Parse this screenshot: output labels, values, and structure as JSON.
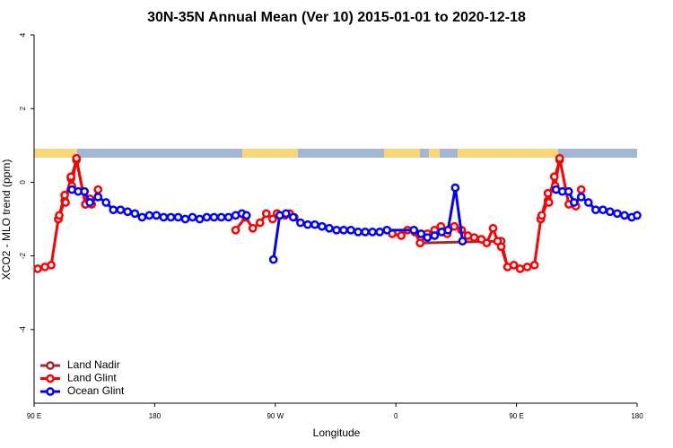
{
  "chart_data": {
    "type": "line",
    "title": "30N-35N Annual Mean (Ver 10)   2015-01-01 to 2020-12-18",
    "x_label": "Longitude",
    "y_label": "XCO2 - MLO trend (ppm)",
    "xlim": [
      90,
      540
    ],
    "ylim": [
      -6,
      4
    ],
    "xticks": [
      {
        "value": 90,
        "label": "90 E"
      },
      180,
      {
        "value": 270,
        "label": "90 W"
      },
      {
        "value": 360,
        "label": "0"
      },
      {
        "value": 450,
        "label": "90 E"
      },
      {
        "value": 540,
        "label": "180"
      }
    ],
    "yticks": [
      4,
      2,
      0,
      -2,
      -4
    ],
    "legend": "bottom-left",
    "series": [
      {
        "name": "Land Nadir",
        "color": "#a52a2a",
        "x": [
          108.1,
          112.8,
          117.5,
          121.6,
          128.3,
          250,
          378.1,
          438.6,
          443.3,
          460,
          468.1,
          473.5,
          482.2
        ],
        "values": [
          -1.0,
          -0.5,
          0.1,
          0.6,
          -0.6,
          null,
          -1.65,
          -1.6,
          -2.3,
          null,
          -1.0,
          -0.5,
          0.6
        ]
      },
      {
        "name": "Land Glint",
        "color": "#ff0000",
        "x": [
          92.7,
          98.1,
          102.8,
          108.1,
          108.8,
          112.8,
          113.5,
          117.5,
          118.2,
          121.6,
          128.3,
          131.6,
          133,
          137.7,
          190,
          240.4,
          247.8,
          253.2,
          258.6,
          263.3,
          268,
          271.3,
          277.4,
          280.7,
          284.1,
          320,
          357.3,
          364,
          368.7,
          374.1,
          378.1,
          383.5,
          388.9,
          393.6,
          398.3,
          403.6,
          409,
          413.7,
          418.4,
          423.8,
          427.8,
          432.5,
          435.9,
          438.6,
          443.3,
          448,
          452.7,
          458,
          463.4,
          468.1,
          468.8,
          473.5,
          474.2,
          478.2,
          478.9,
          482.2,
          489,
          493,
          494.3,
          498.3
        ],
        "values": [
          -2.35,
          -2.3,
          -2.25,
          -1.0,
          -0.9,
          -0.35,
          -0.55,
          0.15,
          -0.1,
          0.65,
          -0.6,
          -0.45,
          -0.6,
          -0.2,
          null,
          -1.3,
          -0.95,
          -1.25,
          -1.1,
          -0.85,
          -1.0,
          -0.85,
          -0.9,
          -0.85,
          -0.95,
          null,
          -1.4,
          -1.45,
          -1.3,
          -1.35,
          -1.65,
          -1.4,
          -1.3,
          -1.2,
          -1.4,
          -1.2,
          -1.3,
          -1.45,
          -1.5,
          -1.55,
          -1.65,
          -1.25,
          -1.6,
          -1.75,
          -2.3,
          -2.25,
          -2.35,
          -2.3,
          -2.25,
          -1.0,
          -0.9,
          -0.3,
          -0.55,
          0.15,
          -0.1,
          0.65,
          -0.6,
          -0.55,
          -0.65,
          -0.2
        ]
      },
      {
        "name": "Ocean Glint",
        "color": "#0000ff",
        "x": [
          118.2,
          122.9,
          127.6,
          131.6,
          137.7,
          143.7,
          149.1,
          154.5,
          159.8,
          165.2,
          170.6,
          176,
          181.3,
          186.7,
          192.1,
          197.5,
          202.8,
          208.2,
          213.6,
          218.9,
          224.3,
          229.7,
          235.1,
          240.4,
          245.1,
          248.5,
          260,
          268.6,
          273.3,
          278,
          283.4,
          288.8,
          294.2,
          299.5,
          304.9,
          310.3,
          315.7,
          321,
          326.4,
          331.8,
          337.1,
          342.5,
          347.9,
          353.3,
          373.4,
          378.8,
          383.5,
          388.9,
          394.2,
          398.9,
          404.3,
          409.7,
          450,
          479.5,
          484.2,
          488.9,
          493,
          498.3,
          503.7,
          509.1,
          514.5,
          519.8,
          525.2,
          530.6,
          536,
          540
        ],
        "values": [
          -0.2,
          -0.25,
          -0.25,
          -0.55,
          -0.4,
          -0.55,
          -0.75,
          -0.75,
          -0.8,
          -0.85,
          -0.95,
          -0.9,
          -0.9,
          -0.95,
          -0.95,
          -0.95,
          -1.0,
          -0.95,
          -1.0,
          -0.95,
          -0.95,
          -0.95,
          -0.95,
          -0.9,
          -0.85,
          -0.9,
          null,
          -2.1,
          -0.9,
          -0.85,
          -0.95,
          -1.1,
          -1.15,
          -1.15,
          -1.2,
          -1.25,
          -1.3,
          -1.3,
          -1.3,
          -1.35,
          -1.35,
          -1.35,
          -1.35,
          -1.3,
          -1.3,
          -1.4,
          -1.5,
          -1.45,
          -1.35,
          -1.3,
          -0.15,
          -1.6,
          null,
          -0.2,
          -0.25,
          -0.25,
          -0.55,
          -0.4,
          -0.55,
          -0.75,
          -0.75,
          -0.8,
          -0.85,
          -0.9,
          -0.95,
          -0.9
        ]
      }
    ]
  }
}
